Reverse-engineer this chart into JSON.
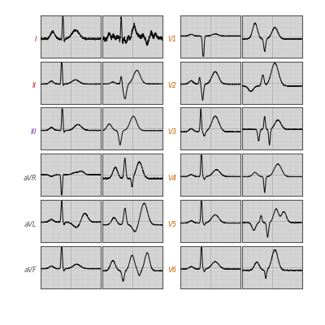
{
  "bg_color": "#d8d8d8",
  "ecg_color": "#111111",
  "grid_minor_color": "#bbbbbb",
  "grid_major_color": "#999999",
  "panel_bg": "#d0d0d0",
  "label_colors": {
    "I": "#cc2222",
    "II": "#cc2222",
    "III": "#7733aa",
    "aVR": "#555555",
    "aVL": "#555555",
    "aVF": "#555555",
    "V1": "#cc6600",
    "V2": "#cc6600",
    "V3": "#cc6600",
    "V4": "#cc6600",
    "V5": "#cc6600",
    "V6": "#cc6600"
  },
  "leads_left": [
    "I",
    "II",
    "III",
    "aVR",
    "aVL",
    "aVF"
  ],
  "leads_right": [
    "V1",
    "V2",
    "V3",
    "V4",
    "V5",
    "V6"
  ]
}
